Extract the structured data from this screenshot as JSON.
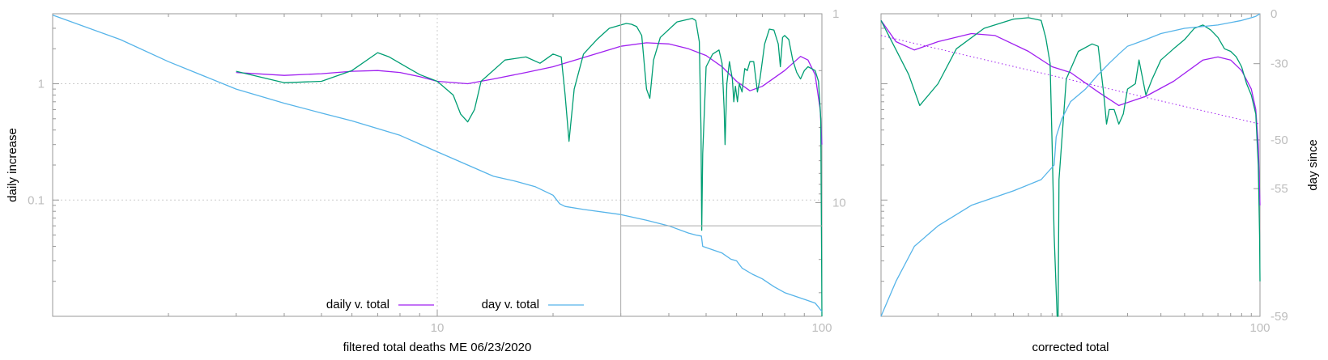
{
  "colors": {
    "daily": "#a020f0",
    "day": "#56b4e9",
    "green": "#009e73",
    "grid": "#cccccc",
    "axis": "#999999",
    "tick_text": "#bdbdbd"
  },
  "chart_data": [
    {
      "type": "line",
      "xscale": "log",
      "yscale": "log",
      "xlim": [
        1,
        100
      ],
      "ylim": [
        0.01,
        4
      ],
      "y2scale": "log",
      "y2lim": [
        1,
        40
      ],
      "y2reversed": true,
      "xlabel": "filtered total deaths ME 06/23/2020",
      "ylabel": "daily increase",
      "x_ticks": [
        {
          "value": 10,
          "label": "10"
        },
        {
          "value": 100,
          "label": "100"
        }
      ],
      "y_ticks": [
        {
          "value": 1,
          "label": "1"
        },
        {
          "value": 0.1,
          "label": "0.1"
        }
      ],
      "y2_ticks": [
        {
          "value": 1,
          "label": "1"
        },
        {
          "value": 10,
          "label": "10"
        }
      ],
      "grid": true,
      "legend": "bottom-center",
      "series": [
        {
          "name": "daily v. total",
          "color": "daily",
          "points": [
            [
              3,
              1.25
            ],
            [
              4,
              1.18
            ],
            [
              5,
              1.22
            ],
            [
              6,
              1.28
            ],
            [
              7,
              1.3
            ],
            [
              8,
              1.25
            ],
            [
              9,
              1.15
            ],
            [
              10,
              1.05
            ],
            [
              12,
              1.0
            ],
            [
              14,
              1.1
            ],
            [
              17,
              1.25
            ],
            [
              20,
              1.4
            ],
            [
              25,
              1.75
            ],
            [
              30,
              2.1
            ],
            [
              35,
              2.25
            ],
            [
              40,
              2.2
            ],
            [
              45,
              2.0
            ],
            [
              50,
              1.75
            ],
            [
              55,
              1.4
            ],
            [
              60,
              1.05
            ],
            [
              65,
              0.87
            ],
            [
              70,
              0.95
            ],
            [
              80,
              1.3
            ],
            [
              88,
              1.72
            ],
            [
              92,
              1.6
            ],
            [
              96,
              1.2
            ],
            [
              99,
              0.6
            ],
            [
              100,
              0.3
            ]
          ]
        },
        {
          "name": "",
          "color": "green",
          "points": [
            [
              3,
              1.28
            ],
            [
              4,
              1.02
            ],
            [
              5,
              1.05
            ],
            [
              6,
              1.3
            ],
            [
              7,
              1.85
            ],
            [
              7.5,
              1.7
            ],
            [
              8,
              1.5
            ],
            [
              9,
              1.2
            ],
            [
              10,
              1.05
            ],
            [
              11,
              0.8
            ],
            [
              11.5,
              0.55
            ],
            [
              12,
              0.47
            ],
            [
              12.5,
              0.6
            ],
            [
              13,
              1.05
            ],
            [
              15,
              1.6
            ],
            [
              17,
              1.7
            ],
            [
              18.5,
              1.5
            ],
            [
              20,
              1.8
            ],
            [
              21,
              1.7
            ],
            [
              21.5,
              0.8
            ],
            [
              22,
              0.32
            ],
            [
              22.7,
              0.9
            ],
            [
              24,
              1.8
            ],
            [
              26,
              2.4
            ],
            [
              28,
              3.0
            ],
            [
              30,
              3.2
            ],
            [
              31,
              3.3
            ],
            [
              32,
              3.25
            ],
            [
              33,
              3.1
            ],
            [
              34,
              2.6
            ],
            [
              35,
              0.9
            ],
            [
              35.7,
              0.75
            ],
            [
              36.5,
              1.6
            ],
            [
              38,
              2.5
            ],
            [
              42,
              3.4
            ],
            [
              46,
              3.65
            ],
            [
              47,
              3.5
            ],
            [
              48,
              2.3
            ],
            [
              48.5,
              0.4
            ],
            [
              48.7,
              0.055
            ],
            [
              49,
              0.25
            ],
            [
              50,
              1.4
            ],
            [
              52,
              1.8
            ],
            [
              54,
              1.95
            ],
            [
              55,
              1.5
            ],
            [
              55.7,
              0.6
            ],
            [
              56,
              0.3
            ],
            [
              56.6,
              1.0
            ],
            [
              57.5,
              1.55
            ],
            [
              58.5,
              1.1
            ],
            [
              59,
              0.7
            ],
            [
              59.6,
              0.95
            ],
            [
              60.3,
              0.7
            ],
            [
              61,
              1.0
            ],
            [
              62,
              0.85
            ],
            [
              63,
              1.35
            ],
            [
              64,
              1.3
            ],
            [
              65,
              1.55
            ],
            [
              66.5,
              1.55
            ],
            [
              68,
              0.85
            ],
            [
              69,
              1.1
            ],
            [
              71,
              2.2
            ],
            [
              73,
              2.95
            ],
            [
              75,
              2.9
            ],
            [
              77,
              2.2
            ],
            [
              78,
              1.4
            ],
            [
              79,
              2.5
            ],
            [
              80,
              2.6
            ],
            [
              82,
              2.4
            ],
            [
              84,
              1.6
            ],
            [
              86,
              1.25
            ],
            [
              88,
              1.1
            ],
            [
              90,
              1.3
            ],
            [
              92,
              1.4
            ],
            [
              94,
              1.35
            ],
            [
              96,
              1.3
            ],
            [
              98,
              1.05
            ],
            [
              99.3,
              0.5
            ],
            [
              99.8,
              0.035
            ],
            [
              100,
              0.01
            ]
          ]
        },
        {
          "name": "day v. total",
          "color": "day",
          "points": [
            [
              1,
              3.9
            ],
            [
              1.5,
              2.4
            ],
            [
              2,
              1.55
            ],
            [
              3,
              0.9
            ],
            [
              4,
              0.68
            ],
            [
              5,
              0.56
            ],
            [
              6,
              0.48
            ],
            [
              8,
              0.36
            ],
            [
              10,
              0.26
            ],
            [
              12,
              0.2
            ],
            [
              14,
              0.16
            ],
            [
              16,
              0.145
            ],
            [
              18,
              0.13
            ],
            [
              20,
              0.11
            ],
            [
              20.8,
              0.093
            ],
            [
              21.5,
              0.088
            ],
            [
              24,
              0.083
            ],
            [
              30,
              0.075
            ],
            [
              35,
              0.067
            ],
            [
              40,
              0.06
            ],
            [
              45,
              0.052
            ],
            [
              47,
              0.05
            ],
            [
              48.6,
              0.049
            ],
            [
              49,
              0.04
            ],
            [
              50,
              0.039
            ],
            [
              55,
              0.035
            ],
            [
              58,
              0.031
            ],
            [
              60,
              0.03
            ],
            [
              62,
              0.026
            ],
            [
              66,
              0.023
            ],
            [
              70,
              0.021
            ],
            [
              75,
              0.018
            ],
            [
              80,
              0.016
            ],
            [
              90,
              0.014
            ],
            [
              96,
              0.013
            ],
            [
              98,
              0.012
            ],
            [
              100,
              0.011
            ]
          ]
        }
      ],
      "annotation": {
        "x": [
          30,
          100
        ],
        "y": 0.06
      }
    },
    {
      "type": "line",
      "xscale": "log",
      "yscale": "log",
      "xlim": [
        1,
        100
      ],
      "ylim": [
        0.01,
        4
      ],
      "xlabel": "corrected total",
      "ylabel": "day since",
      "x_ticks": [
        {
          "value": 100,
          "label": "100"
        }
      ],
      "y2_ticks": [
        {
          "value": 0,
          "label": "0"
        },
        {
          "value": -30,
          "label": "-30"
        },
        {
          "value": -50,
          "label": "-50"
        },
        {
          "value": -55,
          "label": "-55"
        },
        {
          "value": -59,
          "label": "-59"
        }
      ],
      "series": [
        {
          "name": "",
          "color": "daily",
          "style": "solid",
          "points": [
            [
              1,
              3.5
            ],
            [
              1.2,
              2.3
            ],
            [
              1.5,
              1.95
            ],
            [
              2,
              2.3
            ],
            [
              3,
              2.7
            ],
            [
              4,
              2.6
            ],
            [
              6,
              1.9
            ],
            [
              8,
              1.4
            ],
            [
              10,
              1.25
            ],
            [
              14,
              0.85
            ],
            [
              18,
              0.65
            ],
            [
              25,
              0.78
            ],
            [
              35,
              1.05
            ],
            [
              50,
              1.6
            ],
            [
              60,
              1.7
            ],
            [
              70,
              1.6
            ],
            [
              80,
              1.3
            ],
            [
              90,
              0.9
            ],
            [
              95,
              0.6
            ],
            [
              98,
              0.3
            ],
            [
              100,
              0.09
            ]
          ]
        },
        {
          "name": "",
          "color": "daily",
          "style": "dotted",
          "points": [
            [
              1,
              2.6
            ],
            [
              100,
              0.45
            ]
          ]
        },
        {
          "name": "",
          "color": "green",
          "style": "solid",
          "points": [
            [
              1,
              3.5
            ],
            [
              1.4,
              1.2
            ],
            [
              1.6,
              0.65
            ],
            [
              2,
              1.0
            ],
            [
              2.5,
              2.0
            ],
            [
              3.5,
              3.0
            ],
            [
              5,
              3.6
            ],
            [
              6,
              3.7
            ],
            [
              7,
              3.5
            ],
            [
              7.4,
              2.5
            ],
            [
              7.8,
              1.5
            ],
            [
              8,
              0.3
            ],
            [
              8.2,
              0.05
            ],
            [
              8.5,
              0.01
            ],
            [
              8.6,
              0.01
            ],
            [
              8.7,
              0.15
            ],
            [
              9.5,
              1.1
            ],
            [
              11,
              1.9
            ],
            [
              13,
              2.2
            ],
            [
              14,
              2.1
            ],
            [
              15,
              0.8
            ],
            [
              15.5,
              0.45
            ],
            [
              16,
              0.6
            ],
            [
              17,
              0.6
            ],
            [
              18,
              0.45
            ],
            [
              19,
              0.55
            ],
            [
              20,
              0.9
            ],
            [
              22,
              1.0
            ],
            [
              23,
              1.6
            ],
            [
              25,
              0.8
            ],
            [
              27,
              1.1
            ],
            [
              30,
              1.6
            ],
            [
              35,
              2.0
            ],
            [
              40,
              2.4
            ],
            [
              45,
              3.0
            ],
            [
              50,
              3.2
            ],
            [
              55,
              2.9
            ],
            [
              60,
              2.5
            ],
            [
              65,
              2.0
            ],
            [
              70,
              1.9
            ],
            [
              75,
              1.7
            ],
            [
              80,
              1.4
            ],
            [
              85,
              1.0
            ],
            [
              90,
              0.8
            ],
            [
              95,
              0.55
            ],
            [
              98,
              0.2
            ],
            [
              99.5,
              0.05
            ],
            [
              100,
              0.02
            ]
          ]
        },
        {
          "name": "",
          "color": "day",
          "style": "solid",
          "points": [
            [
              1,
              0.01
            ],
            [
              1.2,
              0.02
            ],
            [
              1.5,
              0.04
            ],
            [
              2,
              0.06
            ],
            [
              3,
              0.09
            ],
            [
              5,
              0.12
            ],
            [
              7,
              0.15
            ],
            [
              8.2,
              0.2
            ],
            [
              8.4,
              0.35
            ],
            [
              9,
              0.5
            ],
            [
              10,
              0.7
            ],
            [
              12,
              0.9
            ],
            [
              14,
              1.2
            ],
            [
              16,
              1.5
            ],
            [
              18,
              1.8
            ],
            [
              20,
              2.1
            ],
            [
              25,
              2.4
            ],
            [
              30,
              2.7
            ],
            [
              40,
              3.0
            ],
            [
              60,
              3.2
            ],
            [
              80,
              3.5
            ],
            [
              90,
              3.7
            ],
            [
              95,
              3.8
            ],
            [
              100,
              4.0
            ]
          ]
        }
      ]
    }
  ],
  "legend": {
    "daily_label": "daily v. total",
    "day_label": "day v. total"
  }
}
